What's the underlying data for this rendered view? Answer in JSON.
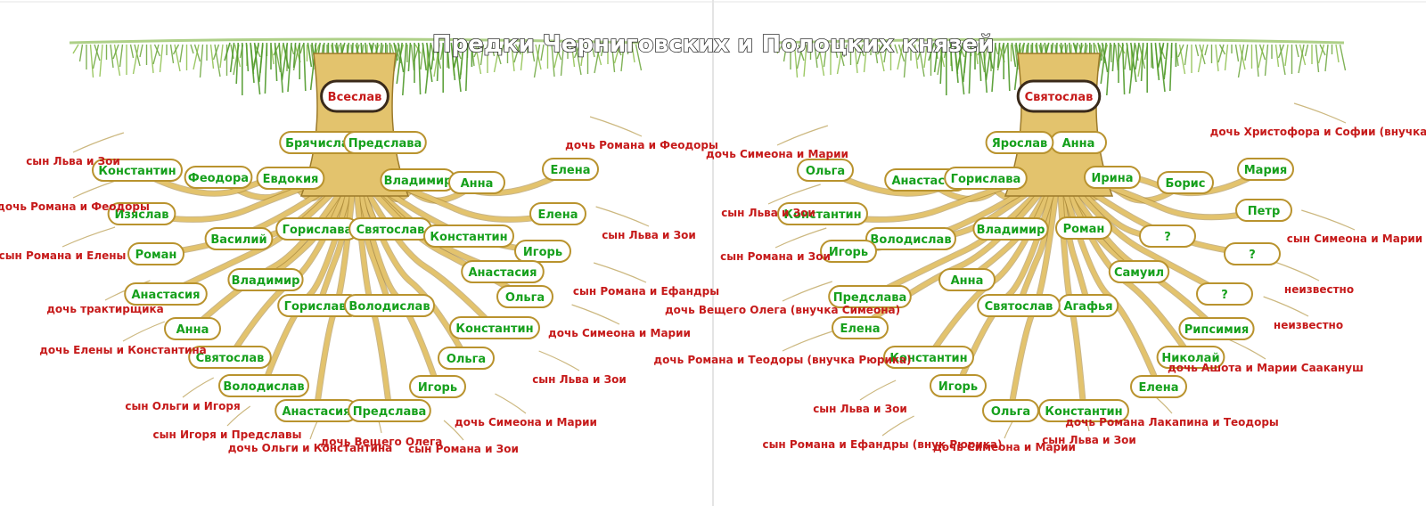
{
  "title": "Предки Черниговских и Полоцких князей",
  "colors": {
    "name_text": "#16a01c",
    "desc_text": "#c61a1a",
    "trunk": "#e3c36d",
    "trunk_edge": "#9c7a2a",
    "grass": "#6aa53a",
    "box_fill": "#ffffff"
  },
  "left_tree": {
    "root": "Всеслав",
    "names": [
      "Брячислав",
      "Предслава",
      "Евдокия",
      "Владимир",
      "Феодора",
      "Анна",
      "Константин",
      "Елена",
      "Изяслав",
      "Горислава",
      "Святослав",
      "Константин",
      "Елена",
      "Василий",
      "Игорь",
      "Роман",
      "Владимир",
      "Анастасия",
      "Анастасия",
      "Ольга",
      "Горислава",
      "Володислав",
      "Анна",
      "Константин",
      "Святослав",
      "Ольга",
      "Володислав",
      "Игорь",
      "Анастасия",
      "Предслава"
    ],
    "notes": [
      "сын Льва и Зои",
      "дочь Романа и Феодоры",
      "дочь Романа и Феодоры",
      "сын Льва и Зои",
      "сын Романа и Елены",
      "сын Романа и Ефандры",
      "дочь трактирщика",
      "дочь Симеона и Марии",
      "дочь Елены и Константина",
      "сын Льва и Зои",
      "сын Ольги и Игоря",
      "дочь Симеона и Марии",
      "дочь Ольги и Константина",
      "сын Игоря и Предславы",
      "дочь Вещего Олега",
      "сын Романа и Зои"
    ]
  },
  "right_tree": {
    "root": "Святослав",
    "names": [
      "Анна",
      "Ярослав",
      "Мария",
      "Ирина",
      "Ольга",
      "Борис",
      "Анастасия",
      "Горислава",
      "Петр",
      "Константин",
      "Роман",
      "Владимир",
      "Володислав",
      "?",
      "Игорь",
      "?",
      "Самуил",
      "Анна",
      "?",
      "Агафья",
      "Святослав",
      "Предслава",
      "Рипсимия",
      "Николай",
      "Елена",
      "Елена",
      "Константин",
      "Константин",
      "Ольга",
      "Игорь"
    ],
    "notes": [
      "дочь Христофора и Софии (внучка Романа)",
      "дочь Симеона и Марии",
      "сын Симеона и Марии",
      "сын Льва и Зои",
      "неизвестно",
      "сын Романа и Зои",
      "неизвестно",
      "дочь Вещего Олега (внучка Симеона)",
      "дочь Ашота и Марии Саакануш",
      "дочь Романа и Теодоры (внучка Рюрика)",
      "дочь Романа Лакапина и Теодоры",
      "сын Льва и Зои",
      "сын Льва и Зои",
      "дочь Симеона и Марии",
      "сын Романа и Ефандры (внук Рюрика)"
    ]
  }
}
